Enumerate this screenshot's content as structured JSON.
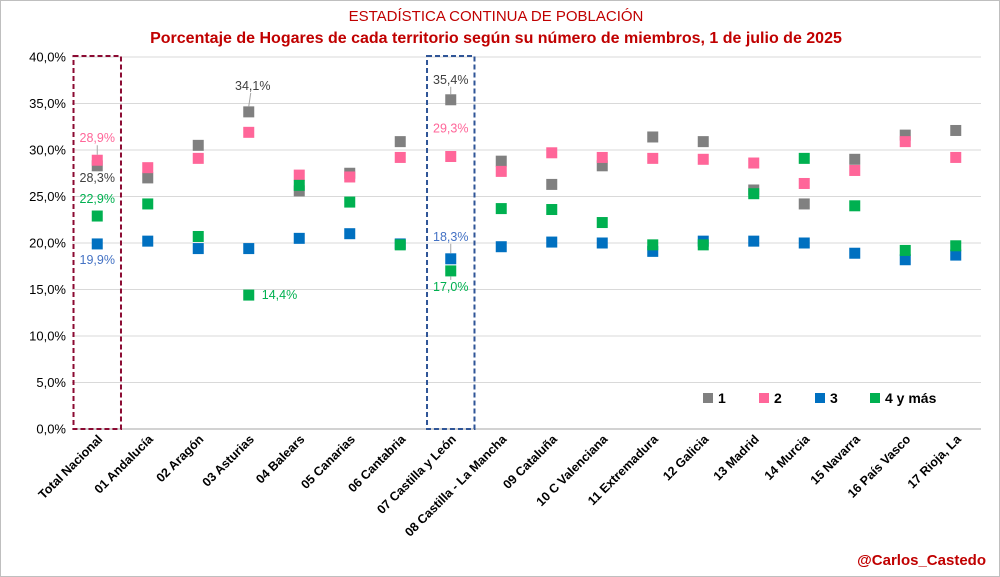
{
  "chart_data": {
    "type": "scatter",
    "title": "ESTADÍSTICA CONTINUA DE POBLACIÓN",
    "subtitle": "Porcentaje de Hogares de cada territorio según su número de miembros, 1 de julio de 2025",
    "xlabel": "",
    "ylabel": "",
    "ylim": [
      0,
      40
    ],
    "yticks": [
      "0,0%",
      "5,0%",
      "10,0%",
      "15,0%",
      "20,0%",
      "25,0%",
      "30,0%",
      "35,0%",
      "40,0%"
    ],
    "grid": "horizontal",
    "legend_position": "bottom-right",
    "categories": [
      "Total Nacional",
      "01 Andalucía",
      "02 Aragón",
      "03 Asturias",
      "04 Balears",
      "05 Canarias",
      "06 Cantabria",
      "07 Castilla y León",
      "08 Castilla - La Mancha",
      "09 Cataluña",
      "10 C Valenciana",
      "11 Extremadura",
      "12 Galicia",
      "13 Madrid",
      "14 Murcia",
      "15 Navarra",
      "16 País Vasco",
      "17 Rioja, La"
    ],
    "series": [
      {
        "name": "1",
        "color": "#808080",
        "values": [
          28.3,
          27.0,
          30.5,
          34.1,
          25.6,
          27.5,
          30.9,
          35.4,
          28.8,
          26.3,
          28.3,
          31.4,
          30.9,
          25.7,
          24.2,
          29.0,
          31.6,
          32.1
        ]
      },
      {
        "name": "2",
        "color": "#ff6699",
        "values": [
          28.9,
          28.1,
          29.1,
          31.9,
          27.3,
          27.1,
          29.2,
          29.3,
          27.7,
          29.7,
          29.2,
          29.1,
          29.0,
          28.6,
          26.4,
          27.8,
          30.9,
          29.2
        ]
      },
      {
        "name": "3",
        "color": "#0070c0",
        "values": [
          19.9,
          20.2,
          19.4,
          19.4,
          20.5,
          21.0,
          19.9,
          18.3,
          19.6,
          20.1,
          20.0,
          19.1,
          20.2,
          20.2,
          20.0,
          18.9,
          18.2,
          18.7
        ]
      },
      {
        "name": "4 y más",
        "color": "#00b050",
        "values": [
          22.9,
          24.2,
          20.7,
          14.4,
          26.2,
          24.4,
          19.8,
          17.0,
          23.7,
          23.6,
          22.2,
          19.8,
          19.8,
          25.3,
          29.1,
          24.0,
          19.2,
          19.7
        ]
      }
    ],
    "annotations": [
      {
        "category": "Total Nacional",
        "series": "2",
        "text": "28,9%",
        "color": "#ff6699"
      },
      {
        "category": "Total Nacional",
        "series": "1",
        "text": "28,3%",
        "color": "#404040"
      },
      {
        "category": "Total Nacional",
        "series": "4 y más",
        "text": "22,9%",
        "color": "#00b050"
      },
      {
        "category": "Total Nacional",
        "series": "3",
        "text": "19,9%",
        "color": "#4472c4"
      },
      {
        "category": "03 Asturias",
        "series": "1",
        "text": "34,1%",
        "color": "#404040"
      },
      {
        "category": "03 Asturias",
        "series": "4 y más",
        "text": "14,4%",
        "color": "#00b050"
      },
      {
        "category": "07 Castilla y León",
        "series": "1",
        "text": "35,4%",
        "color": "#404040"
      },
      {
        "category": "07 Castilla y León",
        "series": "2",
        "text": "29,3%",
        "color": "#ff6699"
      },
      {
        "category": "07 Castilla y León",
        "series": "3",
        "text": "18,3%",
        "color": "#4472c4"
      },
      {
        "category": "07 Castilla y León",
        "series": "4 y más",
        "text": "17,0%",
        "color": "#00b050"
      }
    ],
    "highlight_boxes": [
      {
        "category": "Total Nacional",
        "color": "#8b0a32"
      },
      {
        "category": "07 Castilla y León",
        "color": "#2f5597"
      }
    ]
  },
  "credit": "@Carlos_Castedo"
}
